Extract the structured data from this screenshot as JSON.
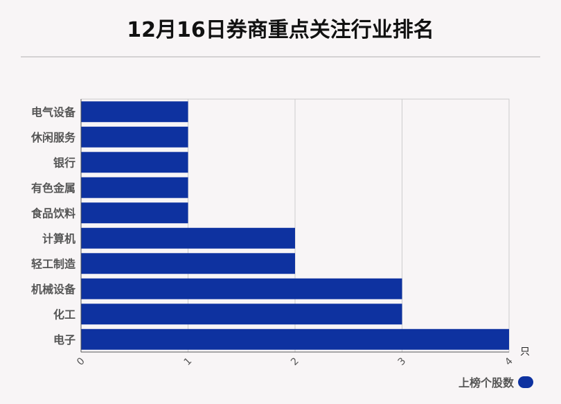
{
  "title": "12月16日券商重点关注行业排名",
  "legend": {
    "label": "上榜个股数"
  },
  "chart_data": {
    "type": "bar",
    "orientation": "horizontal",
    "categories": [
      "电气设备",
      "休闲服务",
      "银行",
      "有色金属",
      "食品饮料",
      "计算机",
      "轻工制造",
      "机械设备",
      "化工",
      "电子"
    ],
    "series": [
      {
        "name": "上榜个股数",
        "values": [
          1,
          1,
          1,
          1,
          1,
          2,
          2,
          3,
          3,
          4
        ]
      }
    ],
    "x_ticks": [
      "0",
      "1",
      "2",
      "3",
      "4"
    ],
    "x_unit": "只",
    "xlim": [
      0,
      4
    ],
    "grid": true,
    "legend_position": "bottom-right",
    "colors": {
      "bar": "#0e32a0",
      "grid": "#cccccc",
      "axis": "#555555",
      "label": "#555555"
    }
  }
}
